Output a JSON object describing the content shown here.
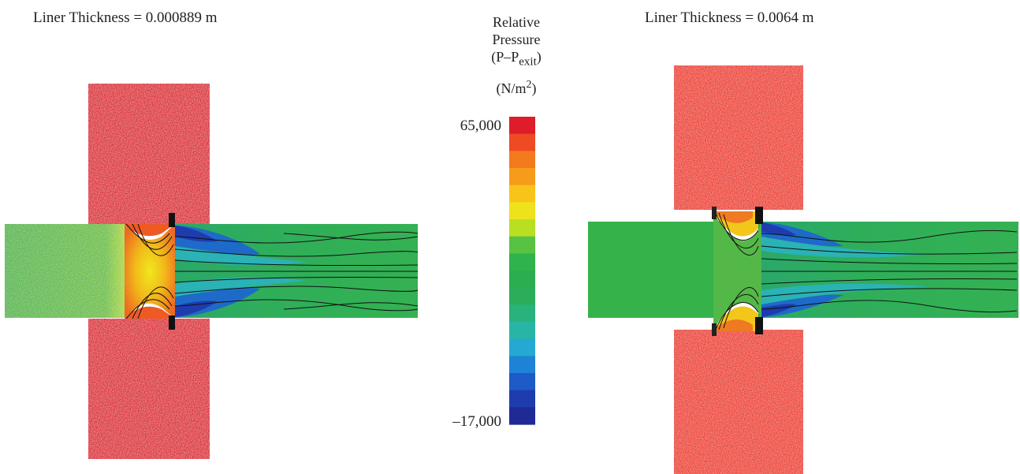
{
  "panels": [
    {
      "title": "Liner Thickness = 0.000889 m"
    },
    {
      "title": "Liner Thickness = 0.0064 m"
    }
  ],
  "colorbar": {
    "label_lines": [
      "Relative",
      "Pressure"
    ],
    "formula": {
      "main": "(P–P",
      "sub": "exit",
      "close": ")"
    },
    "unit": {
      "main": "(N/m",
      "sup": "2",
      "close": ")"
    },
    "max_label": "65,000",
    "min_label": "–17,000",
    "levels": [
      "#de1c2a",
      "#ee4a24",
      "#f47a1e",
      "#f79c1a",
      "#f8c41a",
      "#eee21c",
      "#b9df23",
      "#58c342",
      "#2fb34c",
      "#2aae50",
      "#2aae5a",
      "#2ab27c",
      "#29b5a6",
      "#25a9d2",
      "#1e83d6",
      "#1e5ac8",
      "#1e3cae",
      "#1f2a94"
    ]
  },
  "colors": {
    "high": "#de2a35",
    "upstream": "#52b748",
    "channel": "#33ad57",
    "contour": "#101010"
  }
}
